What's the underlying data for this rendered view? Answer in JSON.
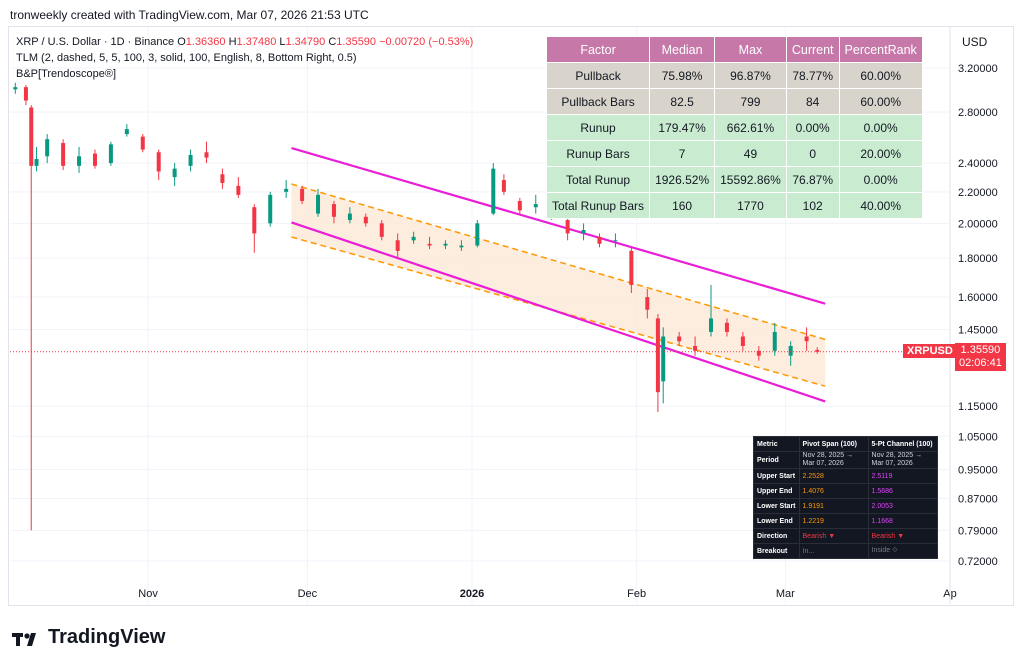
{
  "header": {
    "creator_line": "tronweekly created with TradingView.com, Mar 07, 2026 21:53 UTC"
  },
  "legend": {
    "symbol_line": "XRP / U.S. Dollar · 1D · Binance",
    "o_label": "O",
    "o_value": "1.36360",
    "h_label": "H",
    "h_value": "1.37480",
    "l_label": "L",
    "l_value": "1.34790",
    "c_label": "C",
    "c_value": "1.35590",
    "change": "−0.00720 (−0.53%)",
    "indicator_1": "TLM (2, dashed, 5, 5, 100, 3, solid, 100, English, 8, Bottom Right, 0.5)",
    "indicator_2": "B&P[Trendoscope®]"
  },
  "axis": {
    "currency": "USD",
    "price_ticks": [
      "3.20000",
      "2.80000",
      "2.40000",
      "2.20000",
      "2.00000",
      "1.80000",
      "1.60000",
      "1.45000",
      "1.15000",
      "1.05000",
      "0.95000",
      "0.87000",
      "0.79000",
      "0.72000"
    ],
    "date_ticks": [
      "Nov",
      "Dec",
      "2026",
      "Feb",
      "Mar",
      "Ap"
    ]
  },
  "price_badge": {
    "symbol": "XRPUSD",
    "price": "1.35590",
    "countdown": "02:06:41"
  },
  "stats_table": {
    "headers": [
      "Factor",
      "Median",
      "Max",
      "Current",
      "PercentRank"
    ],
    "rows": [
      {
        "factor": "Pullback",
        "median": "75.98%",
        "max": "96.87%",
        "current": "78.77%",
        "rank": "60.00%"
      },
      {
        "factor": "Pullback Bars",
        "median": "82.5",
        "max": "799",
        "current": "84",
        "rank": "60.00%"
      },
      {
        "factor": "Runup",
        "median": "179.47%",
        "max": "662.61%",
        "current": "0.00%",
        "rank": "0.00%"
      },
      {
        "factor": "Runup Bars",
        "median": "7",
        "max": "49",
        "current": "0",
        "rank": "20.00%"
      },
      {
        "factor": "Total Runup",
        "median": "1926.52%",
        "max": "15592.86%",
        "current": "76.87%",
        "rank": "0.00%"
      },
      {
        "factor": "Total Runup Bars",
        "median": "160",
        "max": "1770",
        "current": "102",
        "rank": "40.00%"
      }
    ],
    "colors": {
      "header": "#c678a9",
      "pullback": "#d9d4cb",
      "runup": "#c9ecd1"
    }
  },
  "channel_table": {
    "headers": [
      "Metric",
      "Pivot Span (100)",
      "5-Pt Channel (100)"
    ],
    "rows": [
      {
        "metric": "Period",
        "a": "Nov 28, 2025 → Mar 07, 2026",
        "b": "Nov 28, 2025 → Mar 07, 2026"
      },
      {
        "metric": "Upper Start",
        "a": "2.2528",
        "b": "2.5119"
      },
      {
        "metric": "Upper End",
        "a": "1.4076",
        "b": "1.5686"
      },
      {
        "metric": "Lower Start",
        "a": "1.9191",
        "b": "2.0053"
      },
      {
        "metric": "Lower End",
        "a": "1.2219",
        "b": "1.1668"
      },
      {
        "metric": "Direction",
        "a": "Bearish ▼",
        "b": "Bearish ▼"
      },
      {
        "metric": "Breakout",
        "a": "In...",
        "b": "Inside ⟐"
      }
    ]
  },
  "brand": {
    "name": "TradingView"
  },
  "chart_data": {
    "type": "candlestick",
    "title": "",
    "y_scale": "log",
    "ylim": [
      0.68,
      3.45
    ],
    "x_range": [
      "2025-10-06",
      "2026-04-01"
    ],
    "last_close": 1.3559,
    "series": [
      {
        "date": "2025-10-07",
        "o": 3.0,
        "h": 3.06,
        "l": 2.96,
        "c": 3.02
      },
      {
        "date": "2025-10-09",
        "o": 3.02,
        "h": 3.04,
        "l": 2.86,
        "c": 2.9
      },
      {
        "date": "2025-10-10",
        "o": 2.84,
        "h": 2.86,
        "l": 0.79,
        "c": 2.38
      },
      {
        "date": "2025-10-11",
        "o": 2.38,
        "h": 2.52,
        "l": 2.34,
        "c": 2.43
      },
      {
        "date": "2025-10-13",
        "o": 2.45,
        "h": 2.62,
        "l": 2.4,
        "c": 2.58
      },
      {
        "date": "2025-10-16",
        "o": 2.55,
        "h": 2.58,
        "l": 2.35,
        "c": 2.38
      },
      {
        "date": "2025-10-19",
        "o": 2.38,
        "h": 2.52,
        "l": 2.33,
        "c": 2.45
      },
      {
        "date": "2025-10-22",
        "o": 2.47,
        "h": 2.5,
        "l": 2.36,
        "c": 2.38
      },
      {
        "date": "2025-10-25",
        "o": 2.4,
        "h": 2.56,
        "l": 2.38,
        "c": 2.54
      },
      {
        "date": "2025-10-28",
        "o": 2.62,
        "h": 2.7,
        "l": 2.6,
        "c": 2.66
      },
      {
        "date": "2025-10-31",
        "o": 2.6,
        "h": 2.62,
        "l": 2.48,
        "c": 2.5
      },
      {
        "date": "2025-11-03",
        "o": 2.48,
        "h": 2.5,
        "l": 2.28,
        "c": 2.34
      },
      {
        "date": "2025-11-06",
        "o": 2.3,
        "h": 2.4,
        "l": 2.24,
        "c": 2.36
      },
      {
        "date": "2025-11-09",
        "o": 2.38,
        "h": 2.5,
        "l": 2.34,
        "c": 2.46
      },
      {
        "date": "2025-11-12",
        "o": 2.48,
        "h": 2.56,
        "l": 2.4,
        "c": 2.44
      },
      {
        "date": "2025-11-15",
        "o": 2.32,
        "h": 2.36,
        "l": 2.22,
        "c": 2.26
      },
      {
        "date": "2025-11-18",
        "o": 2.24,
        "h": 2.3,
        "l": 2.16,
        "c": 2.18
      },
      {
        "date": "2025-11-21",
        "o": 2.1,
        "h": 2.12,
        "l": 1.83,
        "c": 1.94
      },
      {
        "date": "2025-11-24",
        "o": 2.0,
        "h": 2.2,
        "l": 1.98,
        "c": 2.18
      },
      {
        "date": "2025-11-27",
        "o": 2.2,
        "h": 2.28,
        "l": 2.16,
        "c": 2.22
      },
      {
        "date": "2025-11-30",
        "o": 2.22,
        "h": 2.24,
        "l": 2.12,
        "c": 2.14
      },
      {
        "date": "2025-12-03",
        "o": 2.06,
        "h": 2.22,
        "l": 2.04,
        "c": 2.18
      },
      {
        "date": "2025-12-06",
        "o": 2.12,
        "h": 2.14,
        "l": 2.0,
        "c": 2.04
      },
      {
        "date": "2025-12-09",
        "o": 2.02,
        "h": 2.1,
        "l": 2.0,
        "c": 2.06
      },
      {
        "date": "2025-12-12",
        "o": 2.04,
        "h": 2.06,
        "l": 1.98,
        "c": 2.0
      },
      {
        "date": "2025-12-15",
        "o": 2.0,
        "h": 2.02,
        "l": 1.9,
        "c": 1.92
      },
      {
        "date": "2025-12-18",
        "o": 1.9,
        "h": 1.94,
        "l": 1.8,
        "c": 1.84
      },
      {
        "date": "2025-12-21",
        "o": 1.9,
        "h": 1.95,
        "l": 1.88,
        "c": 1.92
      },
      {
        "date": "2025-12-24",
        "o": 1.88,
        "h": 1.92,
        "l": 1.85,
        "c": 1.87
      },
      {
        "date": "2025-12-27",
        "o": 1.87,
        "h": 1.9,
        "l": 1.85,
        "c": 1.88
      },
      {
        "date": "2025-12-30",
        "o": 1.86,
        "h": 1.9,
        "l": 1.84,
        "c": 1.87
      },
      {
        "date": "2026-01-02",
        "o": 1.87,
        "h": 2.02,
        "l": 1.86,
        "c": 2.0
      },
      {
        "date": "2026-01-05",
        "o": 2.06,
        "h": 2.4,
        "l": 2.05,
        "c": 2.36
      },
      {
        "date": "2026-01-07",
        "o": 2.28,
        "h": 2.32,
        "l": 2.18,
        "c": 2.2
      },
      {
        "date": "2026-01-10",
        "o": 2.14,
        "h": 2.16,
        "l": 2.05,
        "c": 2.08
      },
      {
        "date": "2026-01-13",
        "o": 2.1,
        "h": 2.18,
        "l": 2.06,
        "c": 2.12
      },
      {
        "date": "2026-01-16",
        "o": 2.08,
        "h": 2.12,
        "l": 2.02,
        "c": 2.06
      },
      {
        "date": "2026-01-19",
        "o": 2.02,
        "h": 2.04,
        "l": 1.9,
        "c": 1.94
      },
      {
        "date": "2026-01-22",
        "o": 1.94,
        "h": 2.0,
        "l": 1.9,
        "c": 1.96
      },
      {
        "date": "2026-01-25",
        "o": 1.92,
        "h": 1.94,
        "l": 1.86,
        "c": 1.88
      },
      {
        "date": "2026-01-28",
        "o": 1.9,
        "h": 1.94,
        "l": 1.86,
        "c": 1.9
      },
      {
        "date": "2026-01-31",
        "o": 1.84,
        "h": 1.86,
        "l": 1.62,
        "c": 1.66
      },
      {
        "date": "2026-02-03",
        "o": 1.6,
        "h": 1.64,
        "l": 1.5,
        "c": 1.54
      },
      {
        "date": "2026-02-05",
        "o": 1.5,
        "h": 1.52,
        "l": 1.13,
        "c": 1.2
      },
      {
        "date": "2026-02-06",
        "o": 1.24,
        "h": 1.46,
        "l": 1.16,
        "c": 1.42
      },
      {
        "date": "2026-02-09",
        "o": 1.42,
        "h": 1.44,
        "l": 1.38,
        "c": 1.4
      },
      {
        "date": "2026-02-12",
        "o": 1.38,
        "h": 1.42,
        "l": 1.34,
        "c": 1.36
      },
      {
        "date": "2026-02-15",
        "o": 1.44,
        "h": 1.66,
        "l": 1.42,
        "c": 1.5
      },
      {
        "date": "2026-02-18",
        "o": 1.48,
        "h": 1.5,
        "l": 1.42,
        "c": 1.44
      },
      {
        "date": "2026-02-21",
        "o": 1.42,
        "h": 1.44,
        "l": 1.36,
        "c": 1.38
      },
      {
        "date": "2026-02-24",
        "o": 1.36,
        "h": 1.38,
        "l": 1.32,
        "c": 1.34
      },
      {
        "date": "2026-02-27",
        "o": 1.36,
        "h": 1.48,
        "l": 1.34,
        "c": 1.44
      },
      {
        "date": "2026-03-02",
        "o": 1.34,
        "h": 1.4,
        "l": 1.3,
        "c": 1.38
      },
      {
        "date": "2026-03-05",
        "o": 1.42,
        "h": 1.46,
        "l": 1.36,
        "c": 1.4
      },
      {
        "date": "2026-03-07",
        "o": 1.3636,
        "h": 1.3748,
        "l": 1.3479,
        "c": 1.3559
      }
    ],
    "channels": [
      {
        "name": "5-Pt Channel (100)",
        "color": "#e91ed6",
        "style": "solid",
        "start": "2025-11-28",
        "end": "2026-03-07",
        "upper_start": 2.5119,
        "upper_end": 1.5686,
        "lower_start": 2.0053,
        "lower_end": 1.1668
      },
      {
        "name": "Pivot Span (100)",
        "color": "#ff9800",
        "style": "dashed",
        "start": "2025-11-28",
        "end": "2026-03-07",
        "upper_start": 2.2528,
        "upper_end": 1.4076,
        "lower_start": 1.9191,
        "lower_end": 1.2219
      }
    ],
    "colors": {
      "up": "#089981",
      "down": "#f23645",
      "grid": "#f0f3fa",
      "fill": "#fde9d6"
    }
  }
}
